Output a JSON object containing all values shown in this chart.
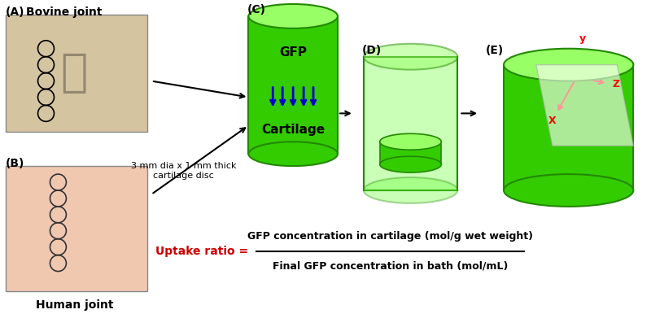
{
  "bg_color": "#ffffff",
  "panel_A_label": "(A)",
  "panel_A_title": "Bovine joint",
  "panel_B_label": "(B)",
  "panel_B_title": "Human joint",
  "panel_C_label": "(C)",
  "panel_D_label": "(D)",
  "panel_E_label": "(E)",
  "cylinder_color_outer": "#33cc00",
  "cylinder_color_inner": "#66ff33",
  "cylinder_color_top": "#99ff66",
  "cylinder_dark": "#228800",
  "cartilage_label": "Cartilage",
  "gfp_label": "GFP",
  "arrow_color": "#0000cc",
  "disc_note": "3 mm dia x 1 mm thick\ncartilage disc",
  "uptake_label": "Uptake ratio",
  "uptake_eq_numerator": "GFP concentration in cartilage (mol/g wet weight)",
  "uptake_eq_denominator": "Final GFP concentration in bath (mol/mL)",
  "uptake_color": "#cc0000",
  "x_axis_color": "#cc0000",
  "y_axis_color": "#cc0000",
  "z_axis_color": "#cc0000",
  "axes_label_x": "X",
  "axes_label_y": "y",
  "axes_label_z": "Z"
}
